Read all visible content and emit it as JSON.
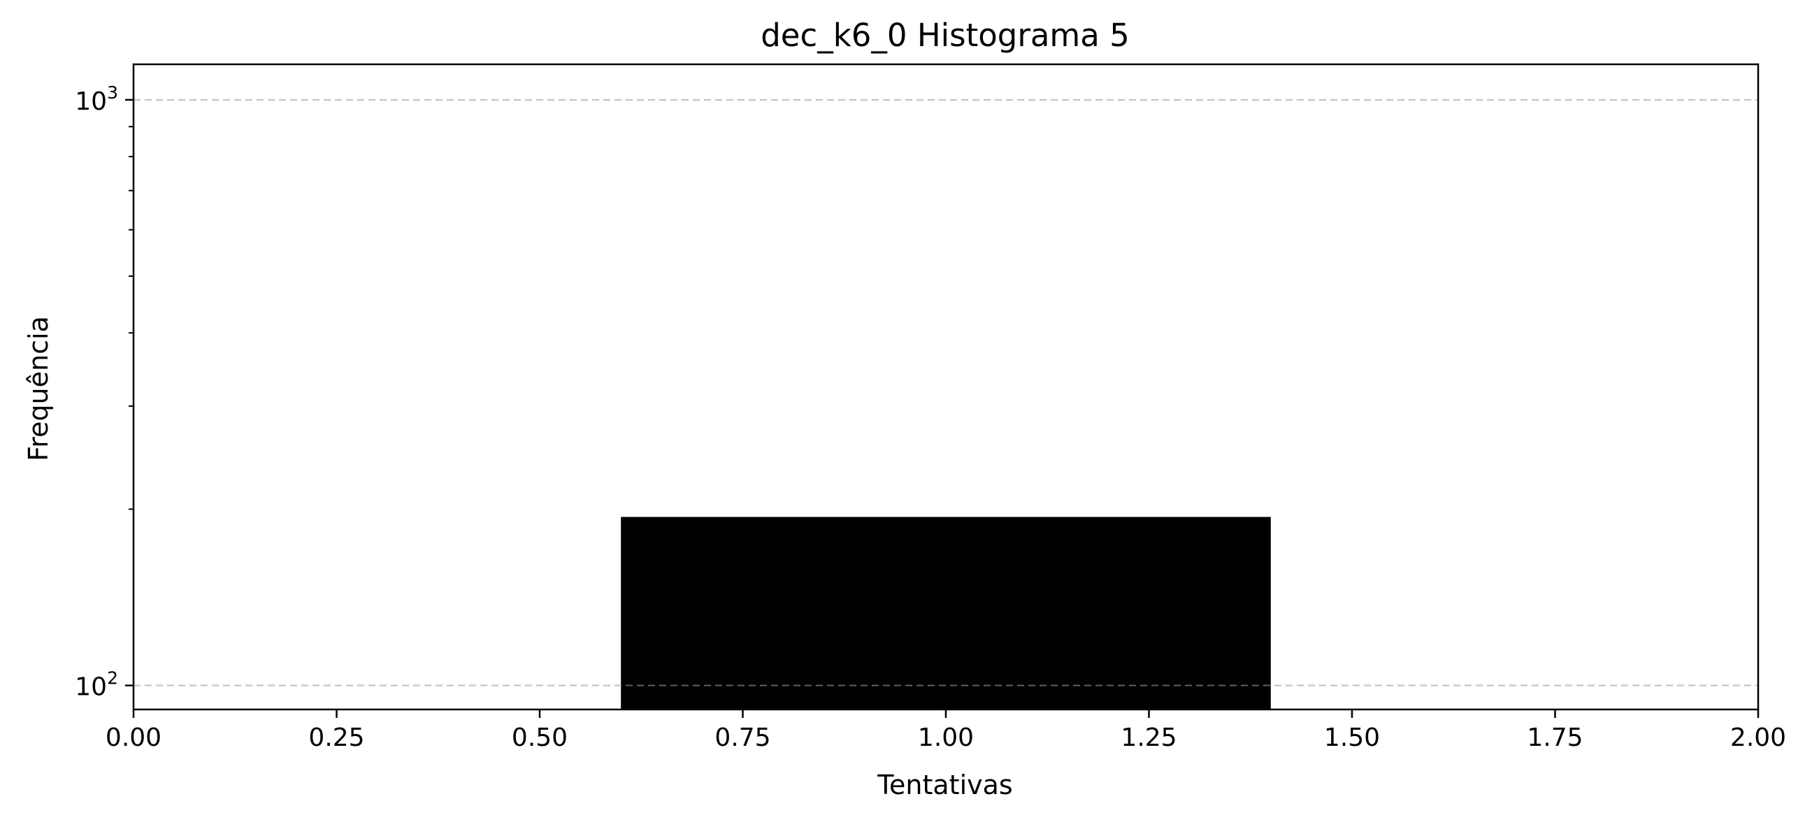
{
  "chart_data": {
    "type": "bar",
    "title": "dec_k6_0 Histograma 5",
    "xlabel": "Tentativas",
    "ylabel": "Frequência",
    "xlim": [
      0.0,
      2.0
    ],
    "ylim": [
      91,
      1150
    ],
    "yscale": "log",
    "grid": {
      "y": true,
      "x": false,
      "style": "dashed"
    },
    "legend": "none",
    "x_ticks": [
      "0.00",
      "0.25",
      "0.50",
      "0.75",
      "1.00",
      "1.25",
      "1.50",
      "1.75",
      "2.00"
    ],
    "x_tick_values": [
      0.0,
      0.25,
      0.5,
      0.75,
      1.0,
      1.25,
      1.5,
      1.75,
      2.0
    ],
    "y_ticks": [
      {
        "value": 100,
        "base": "10",
        "exp": "2"
      },
      {
        "value": 1000,
        "base": "10",
        "exp": "3"
      }
    ],
    "bins": [
      {
        "x_start": 0.6,
        "x_end": 1.4,
        "value": 194
      }
    ],
    "colors": {
      "bar": "#000000",
      "grid": "#b0b0b0",
      "axes": "#000000"
    }
  }
}
